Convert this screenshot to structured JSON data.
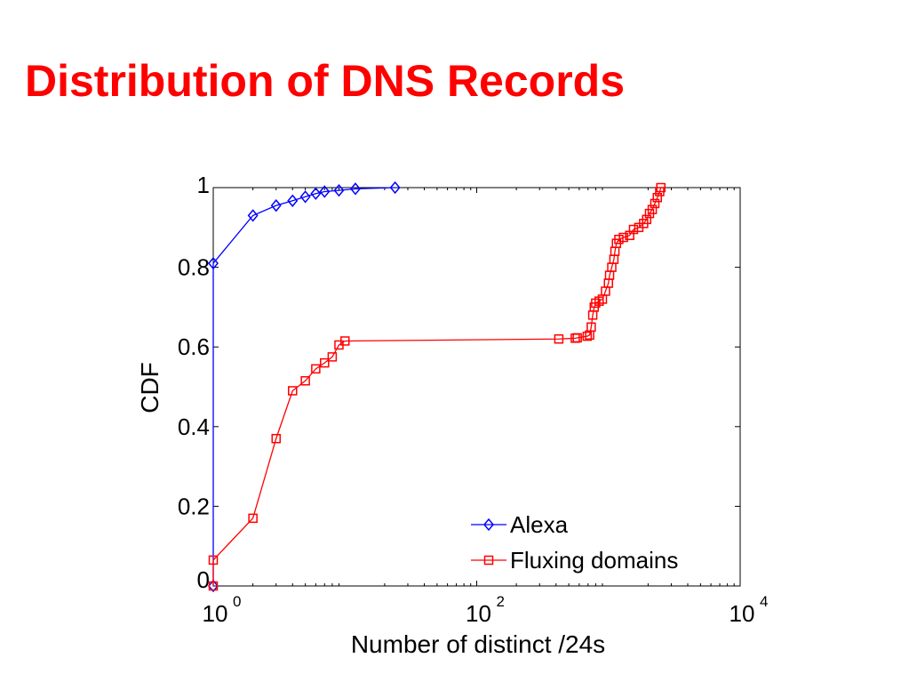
{
  "slide": {
    "title": "Distribution of DNS Records"
  },
  "colors": {
    "title": "#ff0000",
    "alexa": "#0000ff",
    "fluxing": "#ff0000"
  },
  "chart_data": {
    "type": "line",
    "title": "",
    "xlabel": "Number of distinct /24s",
    "ylabel": "CDF",
    "xscale": "log",
    "xlim": [
      1,
      10000
    ],
    "ylim": [
      0,
      1
    ],
    "xticks": [
      {
        "value": 1,
        "base": "10",
        "exp": "0"
      },
      {
        "value": 100,
        "base": "10",
        "exp": "2"
      },
      {
        "value": 10000,
        "base": "10",
        "exp": "4"
      }
    ],
    "yticks": [
      {
        "value": 0,
        "label": "0"
      },
      {
        "value": 0.2,
        "label": "0.2"
      },
      {
        "value": 0.4,
        "label": "0.4"
      },
      {
        "value": 0.6,
        "label": "0.6"
      },
      {
        "value": 0.8,
        "label": "0.8"
      },
      {
        "value": 1,
        "label": "1"
      }
    ],
    "grid": false,
    "legend": "bottom-right",
    "series": [
      {
        "name": "Alexa",
        "marker": "diamond",
        "color": "#0000ff",
        "points": [
          [
            1,
            0
          ],
          [
            1,
            0.81
          ],
          [
            2,
            0.93
          ],
          [
            3,
            0.955
          ],
          [
            4,
            0.967
          ],
          [
            5,
            0.977
          ],
          [
            6,
            0.985
          ],
          [
            7,
            0.99
          ],
          [
            9,
            0.993
          ],
          [
            12,
            0.997
          ],
          [
            24,
            1.0
          ]
        ]
      },
      {
        "name": "Fluxing domains",
        "marker": "square",
        "color": "#ff0000",
        "points": [
          [
            1,
            0
          ],
          [
            1,
            0.065
          ],
          [
            2,
            0.17
          ],
          [
            3,
            0.37
          ],
          [
            4,
            0.49
          ],
          [
            5,
            0.515
          ],
          [
            6,
            0.545
          ],
          [
            7,
            0.56
          ],
          [
            8,
            0.575
          ],
          [
            9,
            0.605
          ],
          [
            10,
            0.615
          ],
          [
            420,
            0.62
          ],
          [
            560,
            0.622
          ],
          [
            580,
            0.623
          ],
          [
            690,
            0.627
          ],
          [
            720,
            0.63
          ],
          [
            740,
            0.65
          ],
          [
            760,
            0.68
          ],
          [
            780,
            0.7
          ],
          [
            800,
            0.71
          ],
          [
            850,
            0.715
          ],
          [
            900,
            0.72
          ],
          [
            950,
            0.74
          ],
          [
            1000,
            0.76
          ],
          [
            1020,
            0.78
          ],
          [
            1060,
            0.8
          ],
          [
            1100,
            0.82
          ],
          [
            1120,
            0.84
          ],
          [
            1150,
            0.86
          ],
          [
            1200,
            0.87
          ],
          [
            1300,
            0.875
          ],
          [
            1450,
            0.88
          ],
          [
            1550,
            0.895
          ],
          [
            1700,
            0.9
          ],
          [
            1850,
            0.91
          ],
          [
            1950,
            0.92
          ],
          [
            2050,
            0.935
          ],
          [
            2150,
            0.945
          ],
          [
            2250,
            0.96
          ],
          [
            2350,
            0.975
          ],
          [
            2450,
            0.99
          ],
          [
            2500,
            1.0
          ]
        ]
      }
    ]
  }
}
